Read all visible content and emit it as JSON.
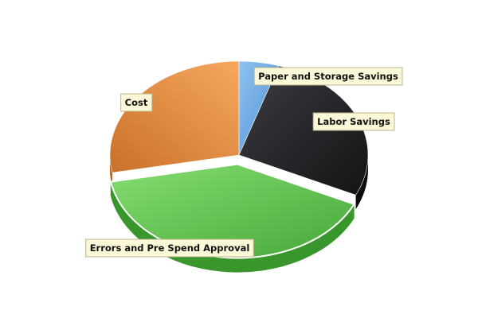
{
  "chart_data": {
    "type": "pie",
    "style": "3d-exploded",
    "slices": [
      {
        "label": "Paper and Storage Savings",
        "value": 5,
        "color": "#6fa8e0"
      },
      {
        "label": "Labor Savings",
        "value": 27,
        "color": "#2b2b2f"
      },
      {
        "label": "Errors and Pre Spend Approval",
        "value": 40,
        "color": "#5cc04a"
      },
      {
        "label": "Cost",
        "value": 28,
        "color": "#e8954f"
      }
    ],
    "labels_shown": true,
    "legend": "none"
  }
}
